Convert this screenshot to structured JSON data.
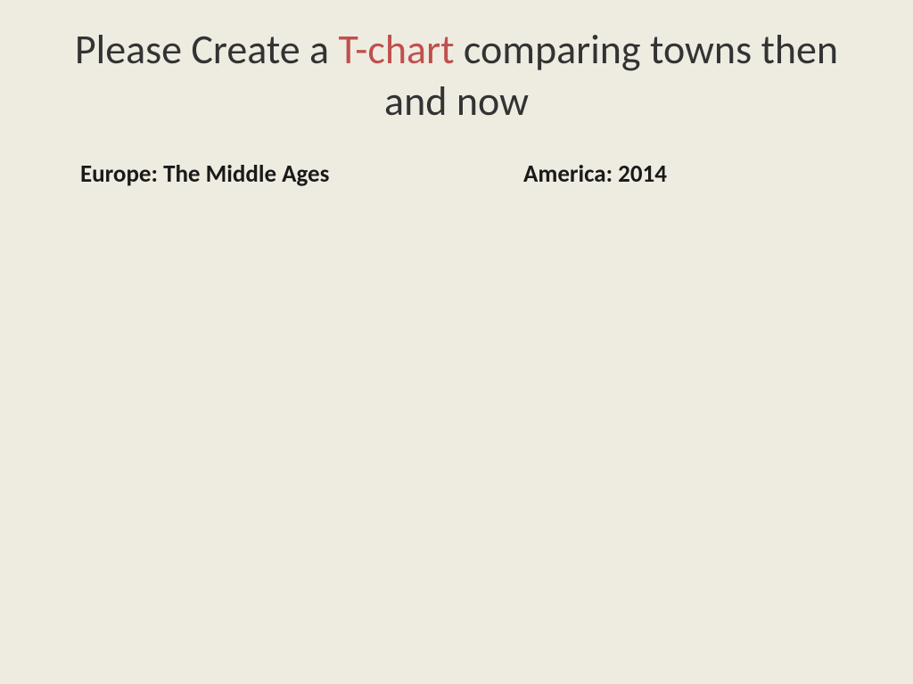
{
  "title": {
    "part1": "Please Create a ",
    "highlight": "T-chart",
    "part2": " comparing towns then and now"
  },
  "columns": {
    "left_header": "Europe: The Middle Ages",
    "right_header": "America: 2014"
  },
  "colors": {
    "background": "#eeece1",
    "text_primary": "#333333",
    "highlight": "#c0504d",
    "header_text": "#1a1a1a"
  },
  "typography": {
    "title_fontsize": 46,
    "title_fontweight": 400,
    "header_fontsize": 27,
    "header_fontweight": 700,
    "font_family": "Calibri"
  }
}
